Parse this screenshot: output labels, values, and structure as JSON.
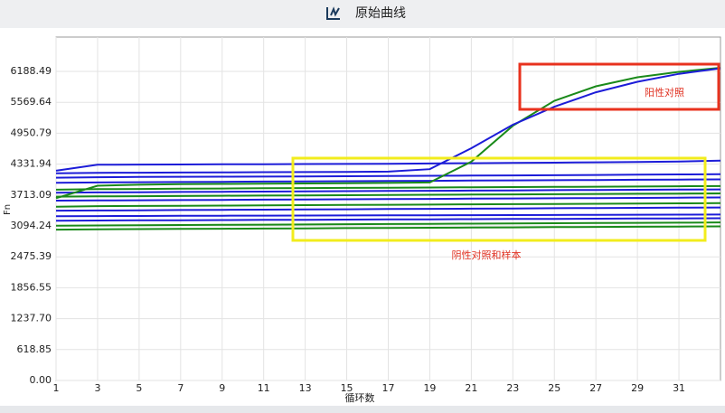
{
  "chart_data": {
    "type": "line",
    "title": "原始曲线",
    "x_label": "循环数",
    "y_label": "Fn",
    "annotations": [
      "阳性对照",
      "阴性对照和样本"
    ],
    "x": [
      1,
      3,
      5,
      7,
      9,
      11,
      13,
      15,
      17,
      19,
      21,
      23,
      25,
      27,
      29,
      31,
      33
    ],
    "xlim": [
      1,
      33
    ],
    "xticks": [
      1,
      3,
      5,
      7,
      9,
      11,
      13,
      15,
      17,
      19,
      21,
      23,
      25,
      27,
      29,
      31
    ],
    "ylim": [
      0,
      6876
    ],
    "yticks": [
      {
        "value": 0,
        "label": "0.00"
      },
      618.85,
      {
        "value": 1237.7,
        "label": "1237.70"
      },
      1856.55,
      2475.39,
      3094.24,
      3713.09,
      4331.94,
      4950.79,
      5569.64,
      6188.49
    ],
    "grid": true,
    "series": [
      {
        "color": "#1c1cd8",
        "values": [
          4200,
          4320,
          4322,
          4325,
          4328,
          4330,
          4333,
          4336,
          4340,
          4345,
          4350,
          4355,
          4360,
          4368,
          4375,
          4385,
          4400
        ]
      },
      {
        "color": "#1c1cd8",
        "values": [
          4060,
          4070,
          4075,
          4078,
          4080,
          4083,
          4086,
          4090,
          4094,
          4098,
          4102,
          4106,
          4110,
          4115,
          4120,
          4125,
          4130
        ]
      },
      {
        "color": "#1c1cd8",
        "values": [
          3960,
          3965,
          3970,
          3974,
          3978,
          3982,
          3986,
          3990,
          3994,
          3998,
          4002,
          4006,
          4010,
          4014,
          4018,
          4022,
          4026
        ]
      },
      {
        "color": "#1a8a1a",
        "values": [
          3820,
          3830,
          3835,
          3840,
          3844,
          3848,
          3852,
          3856,
          3860,
          3864,
          3868,
          3872,
          3876,
          3880,
          3884,
          3888,
          3892
        ]
      },
      {
        "color": "#1c1cd8",
        "values": [
          3760,
          3766,
          3770,
          3774,
          3778,
          3782,
          3786,
          3790,
          3794,
          3798,
          3802,
          3806,
          3810,
          3814,
          3818,
          3822,
          3826
        ]
      },
      {
        "color": "#1a8a1a",
        "values": [
          3680,
          3686,
          3690,
          3694,
          3698,
          3702,
          3706,
          3710,
          3714,
          3718,
          3722,
          3726,
          3730,
          3734,
          3738,
          3742,
          3746
        ]
      },
      {
        "color": "#1c1cd8",
        "values": [
          3600,
          3604,
          3608,
          3612,
          3616,
          3620,
          3624,
          3628,
          3632,
          3636,
          3640,
          3644,
          3648,
          3652,
          3656,
          3660,
          3664
        ]
      },
      {
        "color": "#1a8a1a",
        "values": [
          3480,
          3490,
          3494,
          3498,
          3502,
          3506,
          3510,
          3514,
          3518,
          3522,
          3526,
          3530,
          3534,
          3538,
          3542,
          3546,
          3550
        ]
      },
      {
        "color": "#1c1cd8",
        "values": [
          3400,
          3404,
          3408,
          3412,
          3416,
          3420,
          3424,
          3428,
          3432,
          3436,
          3440,
          3444,
          3448,
          3452,
          3456,
          3460,
          3464
        ]
      },
      {
        "color": "#1c1cd8",
        "values": [
          3290,
          3292,
          3294,
          3296,
          3298,
          3300,
          3302,
          3304,
          3306,
          3308,
          3310,
          3312,
          3314,
          3316,
          3318,
          3320,
          3322
        ]
      },
      {
        "color": "#1c1cd8",
        "values": [
          3200,
          3203,
          3206,
          3209,
          3212,
          3215,
          3218,
          3221,
          3224,
          3227,
          3230,
          3233,
          3236,
          3239,
          3242,
          3245,
          3248
        ]
      },
      {
        "color": "#1a8a1a",
        "values": [
          3100,
          3104,
          3108,
          3112,
          3116,
          3120,
          3124,
          3128,
          3132,
          3136,
          3140,
          3144,
          3148,
          3152,
          3156,
          3160,
          3164
        ]
      },
      {
        "color": "#1a8a1a",
        "values": [
          3020,
          3026,
          3030,
          3034,
          3038,
          3042,
          3046,
          3050,
          3054,
          3058,
          3062,
          3066,
          3070,
          3074,
          3078,
          3082,
          3086
        ]
      },
      {
        "color": "#1a8a1a",
        "values": [
          3650,
          3900,
          3920,
          3930,
          3935,
          3940,
          3945,
          3950,
          3955,
          3965,
          4380,
          5100,
          5600,
          5890,
          6070,
          6180,
          6260
        ]
      },
      {
        "color": "#1c1cd8",
        "values": [
          4150,
          4158,
          4160,
          4163,
          4166,
          4170,
          4173,
          4177,
          4182,
          4230,
          4650,
          5120,
          5480,
          5770,
          5980,
          6140,
          6250
        ]
      }
    ]
  }
}
